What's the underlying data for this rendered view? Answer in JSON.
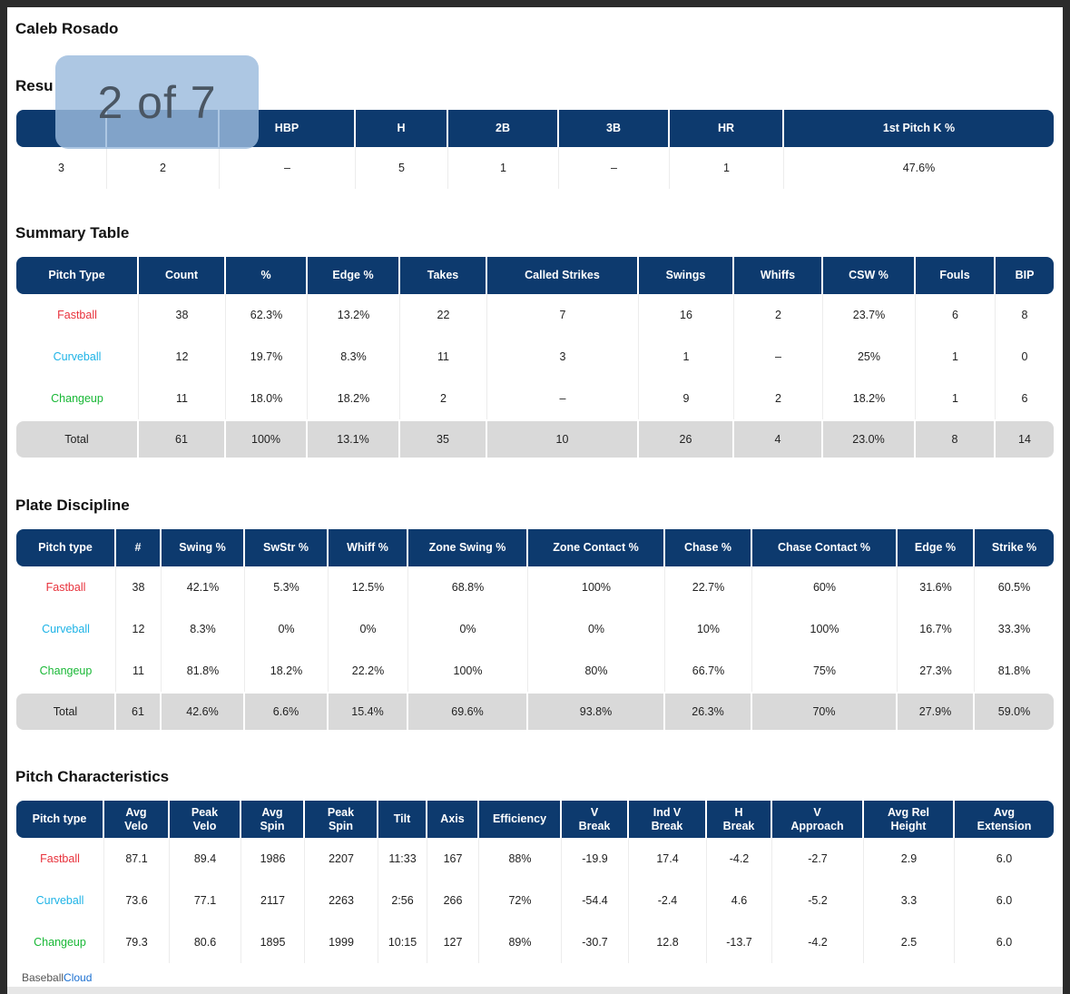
{
  "player_name": "Caleb Rosado",
  "pager": "2 of 7",
  "watermark": {
    "brand_a": "Baseball",
    "brand_b": "Cloud"
  },
  "results": {
    "title": "Resu",
    "headers": [
      "",
      "",
      "HBP",
      "H",
      "2B",
      "3B",
      "HR",
      "1st Pitch K %"
    ],
    "row": [
      "3",
      "2",
      "–",
      "5",
      "1",
      "–",
      "1",
      "47.6%"
    ]
  },
  "summary": {
    "title": "Summary Table",
    "headers": [
      "Pitch Type",
      "Count",
      "%",
      "Edge %",
      "Takes",
      "Called Strikes",
      "Swings",
      "Whiffs",
      "CSW %",
      "Fouls",
      "BIP"
    ],
    "rows": [
      [
        "Fastball",
        "38",
        "62.3%",
        "13.2%",
        "22",
        "7",
        "16",
        "2",
        "23.7%",
        "6",
        "8"
      ],
      [
        "Curveball",
        "12",
        "19.7%",
        "8.3%",
        "11",
        "3",
        "1",
        "–",
        "25%",
        "1",
        "0"
      ],
      [
        "Changeup",
        "11",
        "18.0%",
        "18.2%",
        "2",
        "–",
        "9",
        "2",
        "18.2%",
        "1",
        "6"
      ]
    ],
    "total": [
      "Total",
      "61",
      "100%",
      "13.1%",
      "35",
      "10",
      "26",
      "4",
      "23.0%",
      "8",
      "14"
    ]
  },
  "discipline": {
    "title": "Plate Discipline",
    "headers": [
      "Pitch type",
      "#",
      "Swing %",
      "SwStr %",
      "Whiff %",
      "Zone Swing %",
      "Zone Contact %",
      "Chase %",
      "Chase Contact %",
      "Edge %",
      "Strike %"
    ],
    "rows": [
      [
        "Fastball",
        "38",
        "42.1%",
        "5.3%",
        "12.5%",
        "68.8%",
        "100%",
        "22.7%",
        "60%",
        "31.6%",
        "60.5%"
      ],
      [
        "Curveball",
        "12",
        "8.3%",
        "0%",
        "0%",
        "0%",
        "0%",
        "10%",
        "100%",
        "16.7%",
        "33.3%"
      ],
      [
        "Changeup",
        "11",
        "81.8%",
        "18.2%",
        "22.2%",
        "100%",
        "80%",
        "66.7%",
        "75%",
        "27.3%",
        "81.8%"
      ]
    ],
    "total": [
      "Total",
      "61",
      "42.6%",
      "6.6%",
      "15.4%",
      "69.6%",
      "93.8%",
      "26.3%",
      "70%",
      "27.9%",
      "59.0%"
    ]
  },
  "characteristics": {
    "title": "Pitch Characteristics",
    "headers": [
      "Pitch type",
      "Avg\nVelo",
      "Peak\nVelo",
      "Avg\nSpin",
      "Peak\nSpin",
      "Tilt",
      "Axis",
      "Efficiency",
      "V\nBreak",
      "Ind V\nBreak",
      "H\nBreak",
      "V\nApproach",
      "Avg Rel\nHeight",
      "Avg\nExtension"
    ],
    "rows": [
      [
        "Fastball",
        "87.1",
        "89.4",
        "1986",
        "2207",
        "11:33",
        "167",
        "88%",
        "-19.9",
        "17.4",
        "-4.2",
        "-2.7",
        "2.9",
        "6.0"
      ],
      [
        "Curveball",
        "73.6",
        "77.1",
        "2117",
        "2263",
        "2:56",
        "266",
        "72%",
        "-54.4",
        "-2.4",
        "4.6",
        "-5.2",
        "3.3",
        "6.0"
      ],
      [
        "Changeup",
        "79.3",
        "80.6",
        "1895",
        "1999",
        "10:15",
        "127",
        "89%",
        "-30.7",
        "12.8",
        "-13.7",
        "-4.2",
        "2.5",
        "6.0"
      ]
    ]
  },
  "colors": {
    "header": "#0d3a6e",
    "fastball": "#e8323c",
    "curveball": "#1eb3e6",
    "changeup": "#19b836",
    "total_row": "#d9d9d9"
  }
}
